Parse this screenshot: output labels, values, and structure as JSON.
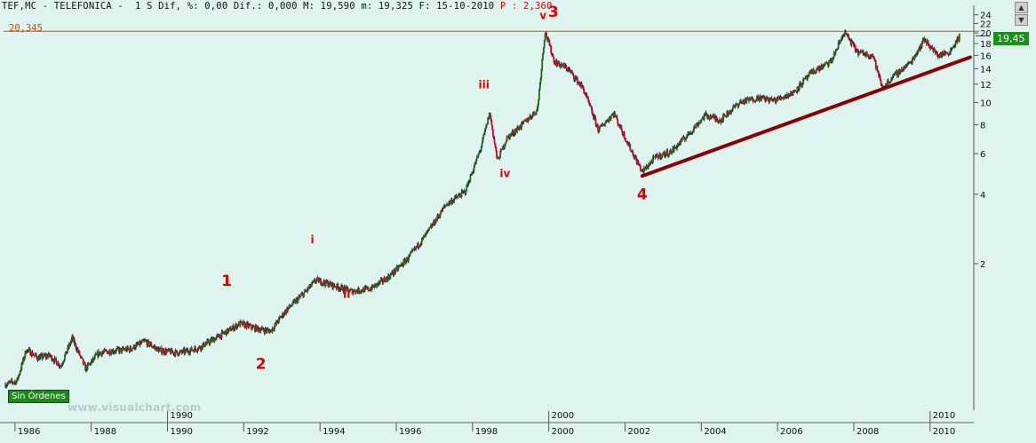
{
  "header": {
    "text": "TEF,MC - TELEFONICA -  1 S Dif, %: 0,00 Dif.: 0,000 M: 19,590 m: 19,325 F: 15-10-2010",
    "p_text": "P : 2,360"
  },
  "reference_line_label": "20,345",
  "orders_badge": "Sin Órdenes",
  "watermark": "www.visualchart.com",
  "last_price_label": "19,45",
  "scroll_arrows": [
    "up-arrow-icon",
    "down-arrow-icon"
  ],
  "colors": {
    "background": "#dff4ef",
    "bullish_candle": "#1d6b1d",
    "bearish_candle": "#d8002a",
    "reference_line": "#d24a00",
    "trendline": "#8b0000",
    "wave_labels": "#e00000",
    "last_price_badge": "#1a8f1a"
  },
  "chart_data": {
    "type": "candlestick",
    "title": "TEF,MC - TELEFONICA",
    "y_scale": "log",
    "ylim": [
      0.48,
      25
    ],
    "xlim": [
      1985.7,
      2011.1
    ],
    "y_ticks": [
      "24",
      "22",
      "20",
      "18",
      "16",
      "14",
      "12",
      "10",
      "8",
      "6",
      "4",
      "2"
    ],
    "x_ticks": [
      "1986",
      "1988",
      "1990",
      "1992",
      "1994",
      "1996",
      "1998",
      "2000",
      "2002",
      "2004",
      "2006",
      "2008",
      "2010"
    ],
    "x_major_markers": [
      "1990",
      "2000",
      "2010"
    ],
    "reference_line": 20.345,
    "last_price": 19.45,
    "price_path": [
      [
        1985.75,
        0.6
      ],
      [
        1986.05,
        0.62
      ],
      [
        1986.3,
        0.85
      ],
      [
        1986.6,
        0.78
      ],
      [
        1986.9,
        0.8
      ],
      [
        1987.2,
        0.72
      ],
      [
        1987.5,
        0.95
      ],
      [
        1987.85,
        0.7
      ],
      [
        1988.2,
        0.82
      ],
      [
        1988.6,
        0.84
      ],
      [
        1989.0,
        0.85
      ],
      [
        1989.4,
        0.92
      ],
      [
        1989.8,
        0.84
      ],
      [
        1990.3,
        0.82
      ],
      [
        1990.8,
        0.86
      ],
      [
        1991.4,
        0.98
      ],
      [
        1991.9,
        1.1
      ],
      [
        1992.3,
        1.05
      ],
      [
        1992.7,
        1.02
      ],
      [
        1993.1,
        1.25
      ],
      [
        1993.6,
        1.5
      ],
      [
        1993.9,
        1.7
      ],
      [
        1994.3,
        1.62
      ],
      [
        1994.8,
        1.52
      ],
      [
        1995.3,
        1.55
      ],
      [
        1995.8,
        1.75
      ],
      [
        1996.3,
        2.1
      ],
      [
        1996.8,
        2.7
      ],
      [
        1997.3,
        3.6
      ],
      [
        1997.8,
        4.1
      ],
      [
        1998.2,
        6.2
      ],
      [
        1998.45,
        9.0
      ],
      [
        1998.65,
        5.6
      ],
      [
        1998.9,
        7.0
      ],
      [
        1999.3,
        8.0
      ],
      [
        1999.7,
        9.3
      ],
      [
        1999.9,
        20.3
      ],
      [
        2000.15,
        15.0
      ],
      [
        2000.5,
        14.0
      ],
      [
        2000.9,
        11.5
      ],
      [
        2001.3,
        7.6
      ],
      [
        2001.7,
        9.0
      ],
      [
        2002.1,
        6.5
      ],
      [
        2002.45,
        5.0
      ],
      [
        2002.8,
        5.8
      ],
      [
        2003.2,
        6.1
      ],
      [
        2003.7,
        7.4
      ],
      [
        2004.1,
        8.8
      ],
      [
        2004.5,
        8.4
      ],
      [
        2005.0,
        10.0
      ],
      [
        2005.5,
        10.5
      ],
      [
        2005.9,
        10.2
      ],
      [
        2006.4,
        11.0
      ],
      [
        2006.9,
        13.5
      ],
      [
        2007.4,
        15.0
      ],
      [
        2007.75,
        20.2
      ],
      [
        2008.1,
        16.5
      ],
      [
        2008.5,
        16.0
      ],
      [
        2008.75,
        11.5
      ],
      [
        2009.0,
        12.8
      ],
      [
        2009.5,
        15.0
      ],
      [
        2009.85,
        18.8
      ],
      [
        2010.2,
        16.0
      ],
      [
        2010.5,
        16.5
      ],
      [
        2010.78,
        19.45
      ]
    ],
    "trendline": {
      "start": [
        2002.45,
        4.8
      ],
      "end": [
        2011.05,
        15.7
      ]
    },
    "annotations": [
      {
        "text": "1",
        "x": 1991.55,
        "y": 1.6,
        "size": "large"
      },
      {
        "text": "2",
        "x": 1992.45,
        "y": 0.7,
        "size": "large"
      },
      {
        "text": "i",
        "x": 1993.8,
        "y": 2.45,
        "size": "small"
      },
      {
        "text": "ii",
        "x": 1994.7,
        "y": 1.42,
        "size": "small"
      },
      {
        "text": "iii",
        "x": 1998.3,
        "y": 11.5,
        "size": "small"
      },
      {
        "text": "iv",
        "x": 1998.85,
        "y": 4.75,
        "size": "small"
      },
      {
        "text": "v",
        "x": 1999.85,
        "y": 23.0,
        "size": "small"
      },
      {
        "text": "3",
        "x": 2000.12,
        "y": 23.5,
        "size": "large"
      },
      {
        "text": "4",
        "x": 2002.45,
        "y": 3.8,
        "size": "large"
      }
    ]
  }
}
